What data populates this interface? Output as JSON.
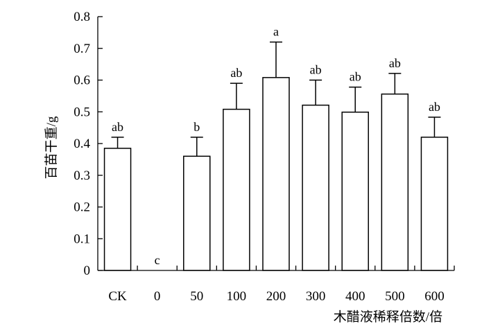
{
  "chart_data": {
    "type": "bar",
    "xlabel": "木醋液稀释倍数/倍",
    "ylabel": "百苗干重/g",
    "ylim": [
      0,
      0.8
    ],
    "yticks": [
      "0",
      "0.1",
      "0.2",
      "0.3",
      "0.4",
      "0.5",
      "0.6",
      "0.7",
      "0.8"
    ],
    "categories": [
      "CK",
      "0",
      "50",
      "100",
      "200",
      "300",
      "400",
      "500",
      "600"
    ],
    "values": [
      0.385,
      0.0,
      0.36,
      0.508,
      0.608,
      0.521,
      0.499,
      0.556,
      0.42
    ],
    "error_upper": [
      0.035,
      0.0,
      0.06,
      0.082,
      0.112,
      0.079,
      0.079,
      0.065,
      0.063
    ],
    "significance": [
      "ab",
      "c",
      "b",
      "ab",
      "a",
      "ab",
      "ab",
      "ab",
      "ab"
    ],
    "bar_fill": "#ffffff",
    "bar_stroke": "#000000",
    "grid": false,
    "legend": "none"
  }
}
